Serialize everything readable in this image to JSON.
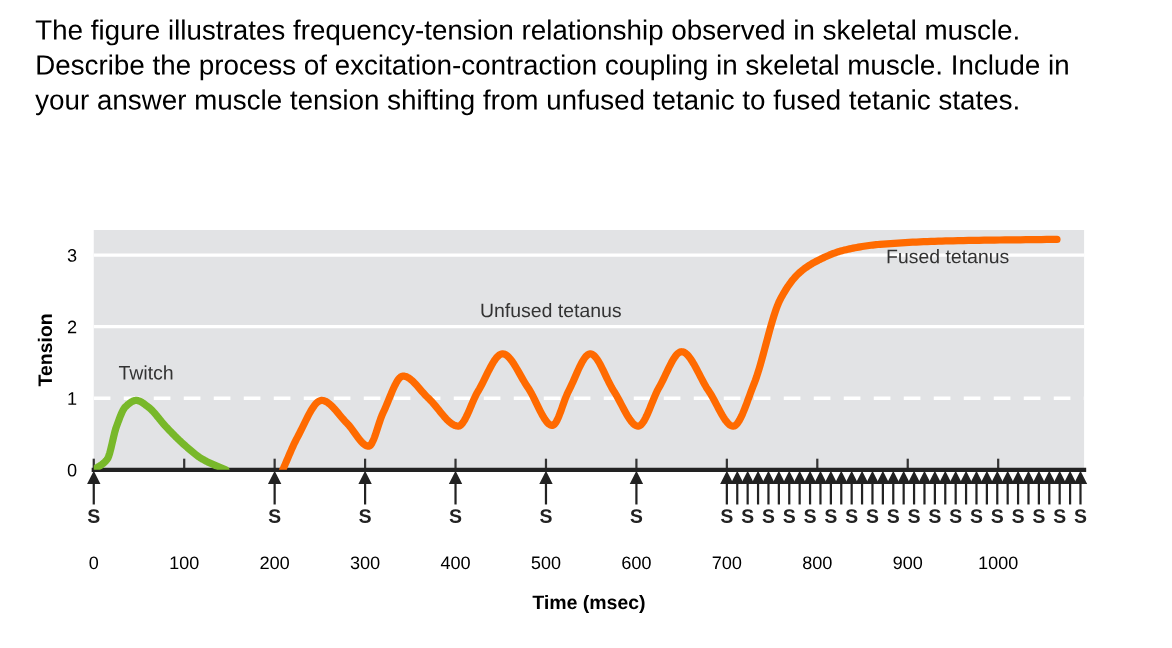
{
  "chart_data": {
    "type": "line",
    "title": "The figure illustrates frequency-tension relationship observed in skeletal muscle.\nDescribe the process of excitation-contraction coupling in skeletal muscle. Include in\nyour answer muscle tension shifting from unfused tetanic to fused tetanic states.",
    "xlabel": "Time (msec)",
    "ylabel": "Tension",
    "series": [
      {
        "color": "#78b82a",
        "x": [
          0,
          15,
          25,
          35,
          47,
          60,
          80,
          100,
          120,
          146
        ],
        "values": [
          0,
          0.15,
          0.6,
          0.88,
          0.97,
          0.88,
          0.6,
          0.35,
          0.15,
          0
        ]
      },
      {
        "color": "#ff6a00",
        "x": [
          209,
          225,
          252,
          280,
          304,
          320,
          342,
          370,
          403,
          425,
          452,
          480,
          507,
          525,
          549,
          575,
          602,
          625,
          650,
          680,
          707,
          730,
          759,
          780,
          803,
          830,
          869,
          950,
          1065
        ],
        "values": [
          0,
          0.45,
          0.97,
          0.65,
          0.33,
          0.8,
          1.31,
          1.0,
          0.61,
          1.1,
          1.62,
          1.15,
          0.62,
          1.1,
          1.62,
          1.1,
          0.61,
          1.15,
          1.65,
          1.1,
          0.61,
          1.2,
          2.38,
          2.75,
          2.94,
          3.07,
          3.15,
          3.2,
          3.22
        ]
      }
    ],
    "xlim": [
      0,
      1095
    ],
    "xticks": [
      0,
      100,
      200,
      300,
      400,
      500,
      600,
      700,
      800,
      900,
      1000
    ],
    "ylim": [
      0,
      3.35
    ],
    "yticks": [
      0,
      1,
      2,
      3
    ],
    "grid": "y",
    "ref_lines": [
      {
        "axis": "y",
        "value": 1,
        "color": "#ffffff",
        "line_style": "dashed"
      },
      {
        "axis": "x",
        "value": 0,
        "label": "S"
      },
      {
        "axis": "x",
        "value": 200,
        "label": "S"
      },
      {
        "axis": "x",
        "value": 300,
        "label": "S"
      },
      {
        "axis": "x",
        "value": 400,
        "label": "S"
      },
      {
        "axis": "x",
        "value": 500,
        "label": "S"
      },
      {
        "axis": "x",
        "value": 600,
        "label": "S"
      },
      {
        "axis": "x",
        "value": 700,
        "label": "S"
      },
      {
        "axis": "x",
        "value": 723,
        "label": "S"
      },
      {
        "axis": "x",
        "value": 746,
        "label": "S"
      },
      {
        "axis": "x",
        "value": 769,
        "label": "S"
      },
      {
        "axis": "x",
        "value": 792,
        "label": "S"
      },
      {
        "axis": "x",
        "value": 815,
        "label": "S"
      },
      {
        "axis": "x",
        "value": 838,
        "label": "S"
      },
      {
        "axis": "x",
        "value": 861,
        "label": "S"
      },
      {
        "axis": "x",
        "value": 884,
        "label": "S"
      },
      {
        "axis": "x",
        "value": 907,
        "label": "S"
      },
      {
        "axis": "x",
        "value": 930,
        "label": "S"
      },
      {
        "axis": "x",
        "value": 953,
        "label": "S"
      },
      {
        "axis": "x",
        "value": 976,
        "label": "S"
      },
      {
        "axis": "x",
        "value": 999,
        "label": "S"
      },
      {
        "axis": "x",
        "value": 1022,
        "label": "S"
      },
      {
        "axis": "x",
        "value": 1045,
        "label": "S"
      },
      {
        "axis": "x",
        "value": 1068,
        "label": "S"
      },
      {
        "axis": "x",
        "value": 1091,
        "label": "S"
      }
    ],
    "annotations": [
      "Twitch",
      "Unfused tetanus",
      "Fused tetanus"
    ]
  }
}
